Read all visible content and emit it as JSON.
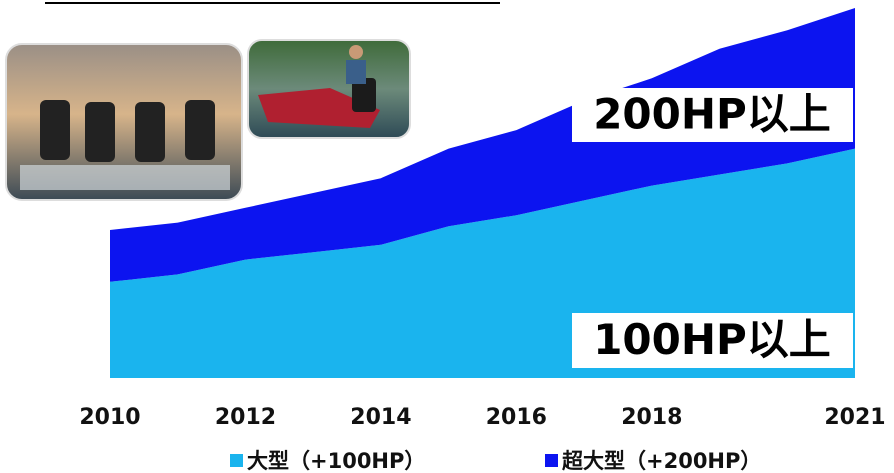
{
  "chart_data": {
    "type": "stacked_area",
    "x": [
      2010,
      2011,
      2012,
      2013,
      2014,
      2015,
      2016,
      2017,
      2018,
      2019,
      2020,
      2021
    ],
    "xlim": [
      2010,
      2021
    ],
    "xticks": [
      2010,
      2012,
      2014,
      2016,
      2018,
      2021
    ],
    "series": [
      {
        "name": "大型（+100HP）",
        "color": "#1ab4ee",
        "values": [
          26,
          28,
          32,
          34,
          36,
          41,
          44,
          48,
          52,
          55,
          58,
          62
        ]
      },
      {
        "name": "超大型（+200HP）",
        "color": "#0c14f0",
        "values": [
          14,
          14,
          14,
          16,
          18,
          21,
          23,
          27,
          29,
          34,
          36,
          38
        ]
      }
    ],
    "annotations": [
      "200HP以上",
      "100HP以上"
    ]
  }
}
